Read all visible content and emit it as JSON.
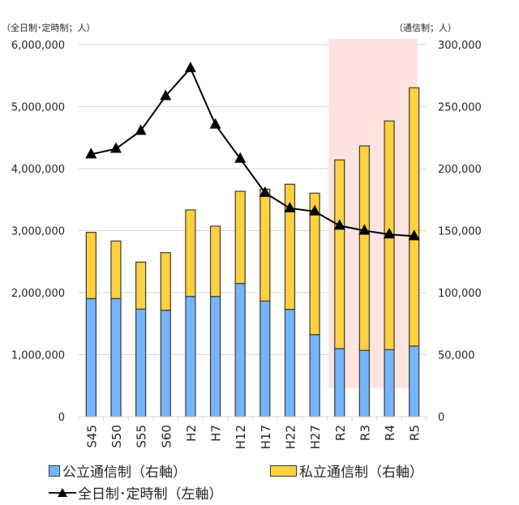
{
  "chart_data": {
    "type": "bar",
    "stacked": true,
    "categories": [
      "S45",
      "S50",
      "S55",
      "S60",
      "H2",
      "H7",
      "H12",
      "H17",
      "H22",
      "H27",
      "R2",
      "R3",
      "R4",
      "R5"
    ],
    "left_axis": {
      "label": "（全日制･定時制；人）",
      "ylim": [
        0,
        6000000
      ],
      "ticks": [
        "0",
        "1,000,000",
        "2,000,000",
        "3,000,000",
        "4,000,000",
        "5,000,000",
        "6,000,000"
      ],
      "tick_values": [
        0,
        1000000,
        2000000,
        3000000,
        4000000,
        5000000,
        6000000
      ]
    },
    "right_axis": {
      "label": "（通信制；人）",
      "ylim": [
        0,
        300000
      ],
      "ticks": [
        "0",
        "50,000",
        "100,000",
        "150,000",
        "200,000",
        "250,000",
        "300,000"
      ],
      "tick_values": [
        0,
        50000,
        100000,
        150000,
        200000,
        250000,
        300000
      ]
    },
    "series": [
      {
        "name": "公立通信制（右軸）",
        "type": "bar",
        "axis": "right",
        "color": "#75b5fc",
        "values": [
          95200,
          95200,
          86700,
          85800,
          96900,
          96900,
          107400,
          93200,
          86500,
          66200,
          54900,
          53400,
          54000,
          56900
        ]
      },
      {
        "name": "私立通信制（右軸）",
        "type": "bar",
        "axis": "right",
        "color": "#ffd13f",
        "values": [
          53400,
          46400,
          37900,
          46400,
          69800,
          56700,
          74300,
          90200,
          100900,
          114000,
          152100,
          164900,
          184400,
          208300
        ]
      },
      {
        "name": "全日制･定時制（左軸）",
        "type": "line",
        "axis": "left",
        "color": "#000000",
        "marker": "triangle",
        "values": [
          4230000,
          4320000,
          4610000,
          5170000,
          5620000,
          4710000,
          4160000,
          3610000,
          3360000,
          3310000,
          3080000,
          3000000,
          2940000,
          2910000
        ]
      }
    ],
    "highlight": {
      "from": "R2",
      "to": "R5",
      "color": "#fde4de"
    },
    "grid": true,
    "legend_position": "bottom"
  },
  "legend": {
    "public": "公立通信制（右軸）",
    "private": "私立通信制（右軸）",
    "fulltime": "全日制･定時制（左軸）"
  }
}
